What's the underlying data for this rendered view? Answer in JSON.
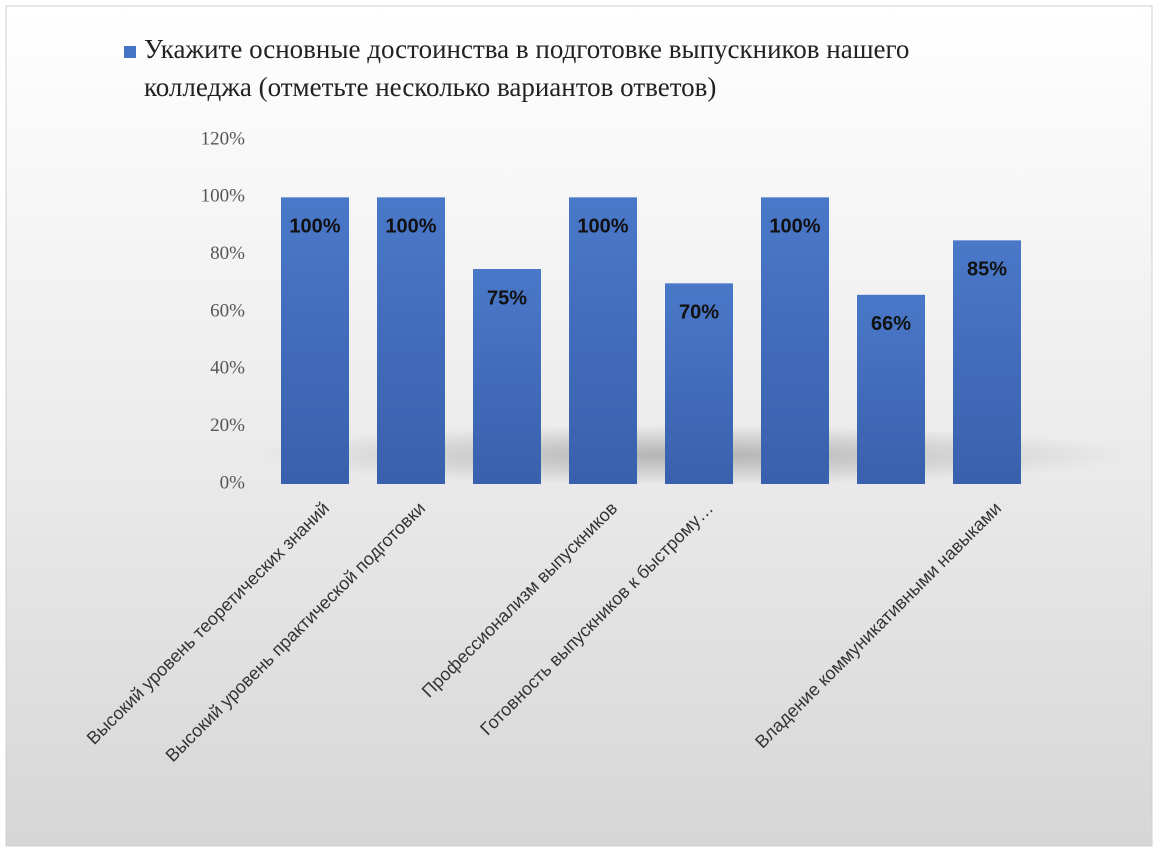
{
  "chart_data": {
    "type": "bar",
    "series": [
      {
        "name": "Укажите основные достоинства в подготовке выпускников нашего колледжа (отметьте несколько вариантов ответов)",
        "color": "#4472c4",
        "values": [
          100,
          100,
          75,
          100,
          70,
          100,
          66,
          85
        ],
        "value_labels": [
          "100%",
          "100%",
          "75%",
          "100%",
          "70%",
          "100%",
          "66%",
          "85%"
        ]
      }
    ],
    "categories": [
      "Высокий уровень теоретических знаний",
      "Высокий уровень практической подготовки",
      null,
      "Профессионализм выпускников",
      "Готовность выпускников к быстрому…",
      null,
      null,
      "Владение коммуникативными навыками"
    ],
    "ylim": [
      0,
      120
    ],
    "yticks": [
      {
        "value": 0,
        "label": "0%"
      },
      {
        "value": 20,
        "label": "20%"
      },
      {
        "value": 40,
        "label": "40%"
      },
      {
        "value": 60,
        "label": "60%"
      },
      {
        "value": 80,
        "label": "80%"
      },
      {
        "value": 100,
        "label": "100%"
      },
      {
        "value": 120,
        "label": "120%"
      }
    ],
    "grid": false
  }
}
